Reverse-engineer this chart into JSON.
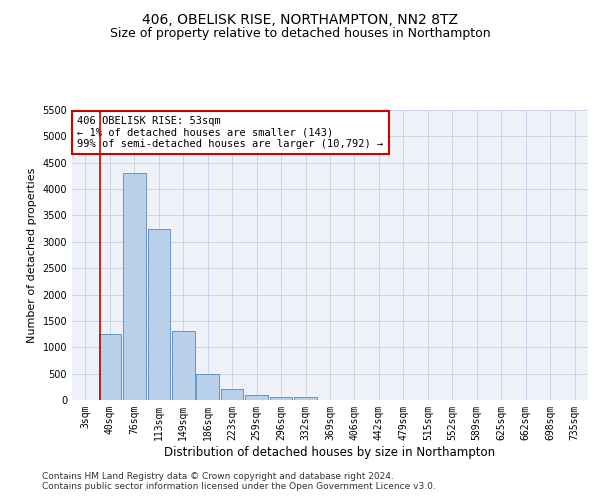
{
  "title": "406, OBELISK RISE, NORTHAMPTON, NN2 8TZ",
  "subtitle": "Size of property relative to detached houses in Northampton",
  "xlabel": "Distribution of detached houses by size in Northampton",
  "ylabel": "Number of detached properties",
  "bar_labels": [
    "3sqm",
    "40sqm",
    "76sqm",
    "113sqm",
    "149sqm",
    "186sqm",
    "223sqm",
    "259sqm",
    "296sqm",
    "332sqm",
    "369sqm",
    "406sqm",
    "442sqm",
    "479sqm",
    "515sqm",
    "552sqm",
    "589sqm",
    "625sqm",
    "662sqm",
    "698sqm",
    "735sqm"
  ],
  "bar_values": [
    0,
    1250,
    4300,
    3250,
    1300,
    490,
    200,
    100,
    65,
    55,
    0,
    0,
    0,
    0,
    0,
    0,
    0,
    0,
    0,
    0,
    0
  ],
  "bar_color": "#b8d0ea",
  "bar_edge_color": "#5588bb",
  "vline_x_index": 1,
  "vline_color": "#cc0000",
  "annotation_box_text": "406 OBELISK RISE: 53sqm\n← 1% of detached houses are smaller (143)\n99% of semi-detached houses are larger (10,792) →",
  "annotation_box_color": "#cc0000",
  "ylim": [
    0,
    5500
  ],
  "yticks": [
    0,
    500,
    1000,
    1500,
    2000,
    2500,
    3000,
    3500,
    4000,
    4500,
    5000,
    5500
  ],
  "grid_color": "#c8d4e8",
  "background_color": "#eef2f8",
  "footer_line1": "Contains HM Land Registry data © Crown copyright and database right 2024.",
  "footer_line2": "Contains public sector information licensed under the Open Government Licence v3.0.",
  "title_fontsize": 10,
  "subtitle_fontsize": 9,
  "xlabel_fontsize": 8.5,
  "ylabel_fontsize": 8,
  "tick_fontsize": 7,
  "footer_fontsize": 6.5,
  "annot_fontsize": 7.5
}
